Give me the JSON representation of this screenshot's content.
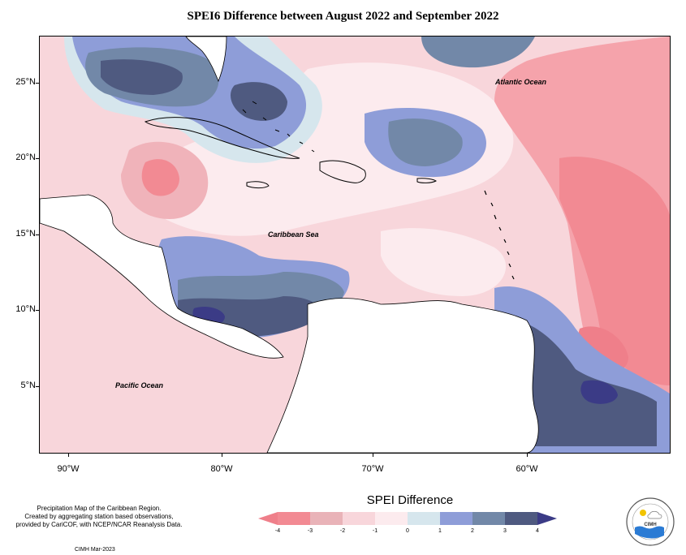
{
  "title": "SPEI6 Difference between August 2022 and September 2022",
  "ocean_labels": {
    "atlantic": "Atlantic Ocean",
    "caribbean": "Caribbean Sea",
    "pacific": "Pacific Ocean"
  },
  "lat_labels": [
    "25°N",
    "20°N",
    "15°N",
    "10°N",
    "5°N"
  ],
  "lon_labels": [
    "90°W",
    "80°W",
    "70°W",
    "60°W"
  ],
  "legend": {
    "title": "SPEI Difference",
    "ticks": [
      "-4",
      "-3",
      "-2",
      "-1",
      "0",
      "1",
      "2",
      "3",
      "4"
    ],
    "colors": [
      "#f28a93",
      "#e9b3b8",
      "#f8d6db",
      "#fcebee",
      "#d6e6ed",
      "#8e9dd8",
      "#7288a8",
      "#4f5a80"
    ],
    "below_color": "#ef7f8a",
    "above_color": "#3b3b86"
  },
  "credit": {
    "lines": [
      "Precipitation Map of the Caribbean Region.",
      "Created by aggregating station based observations,",
      "provided by CariCOF, with NCEP/NCAR Reanalysis Data."
    ],
    "date": "CIMH Mar-2023"
  },
  "logo": {
    "label": "CIMH"
  }
}
